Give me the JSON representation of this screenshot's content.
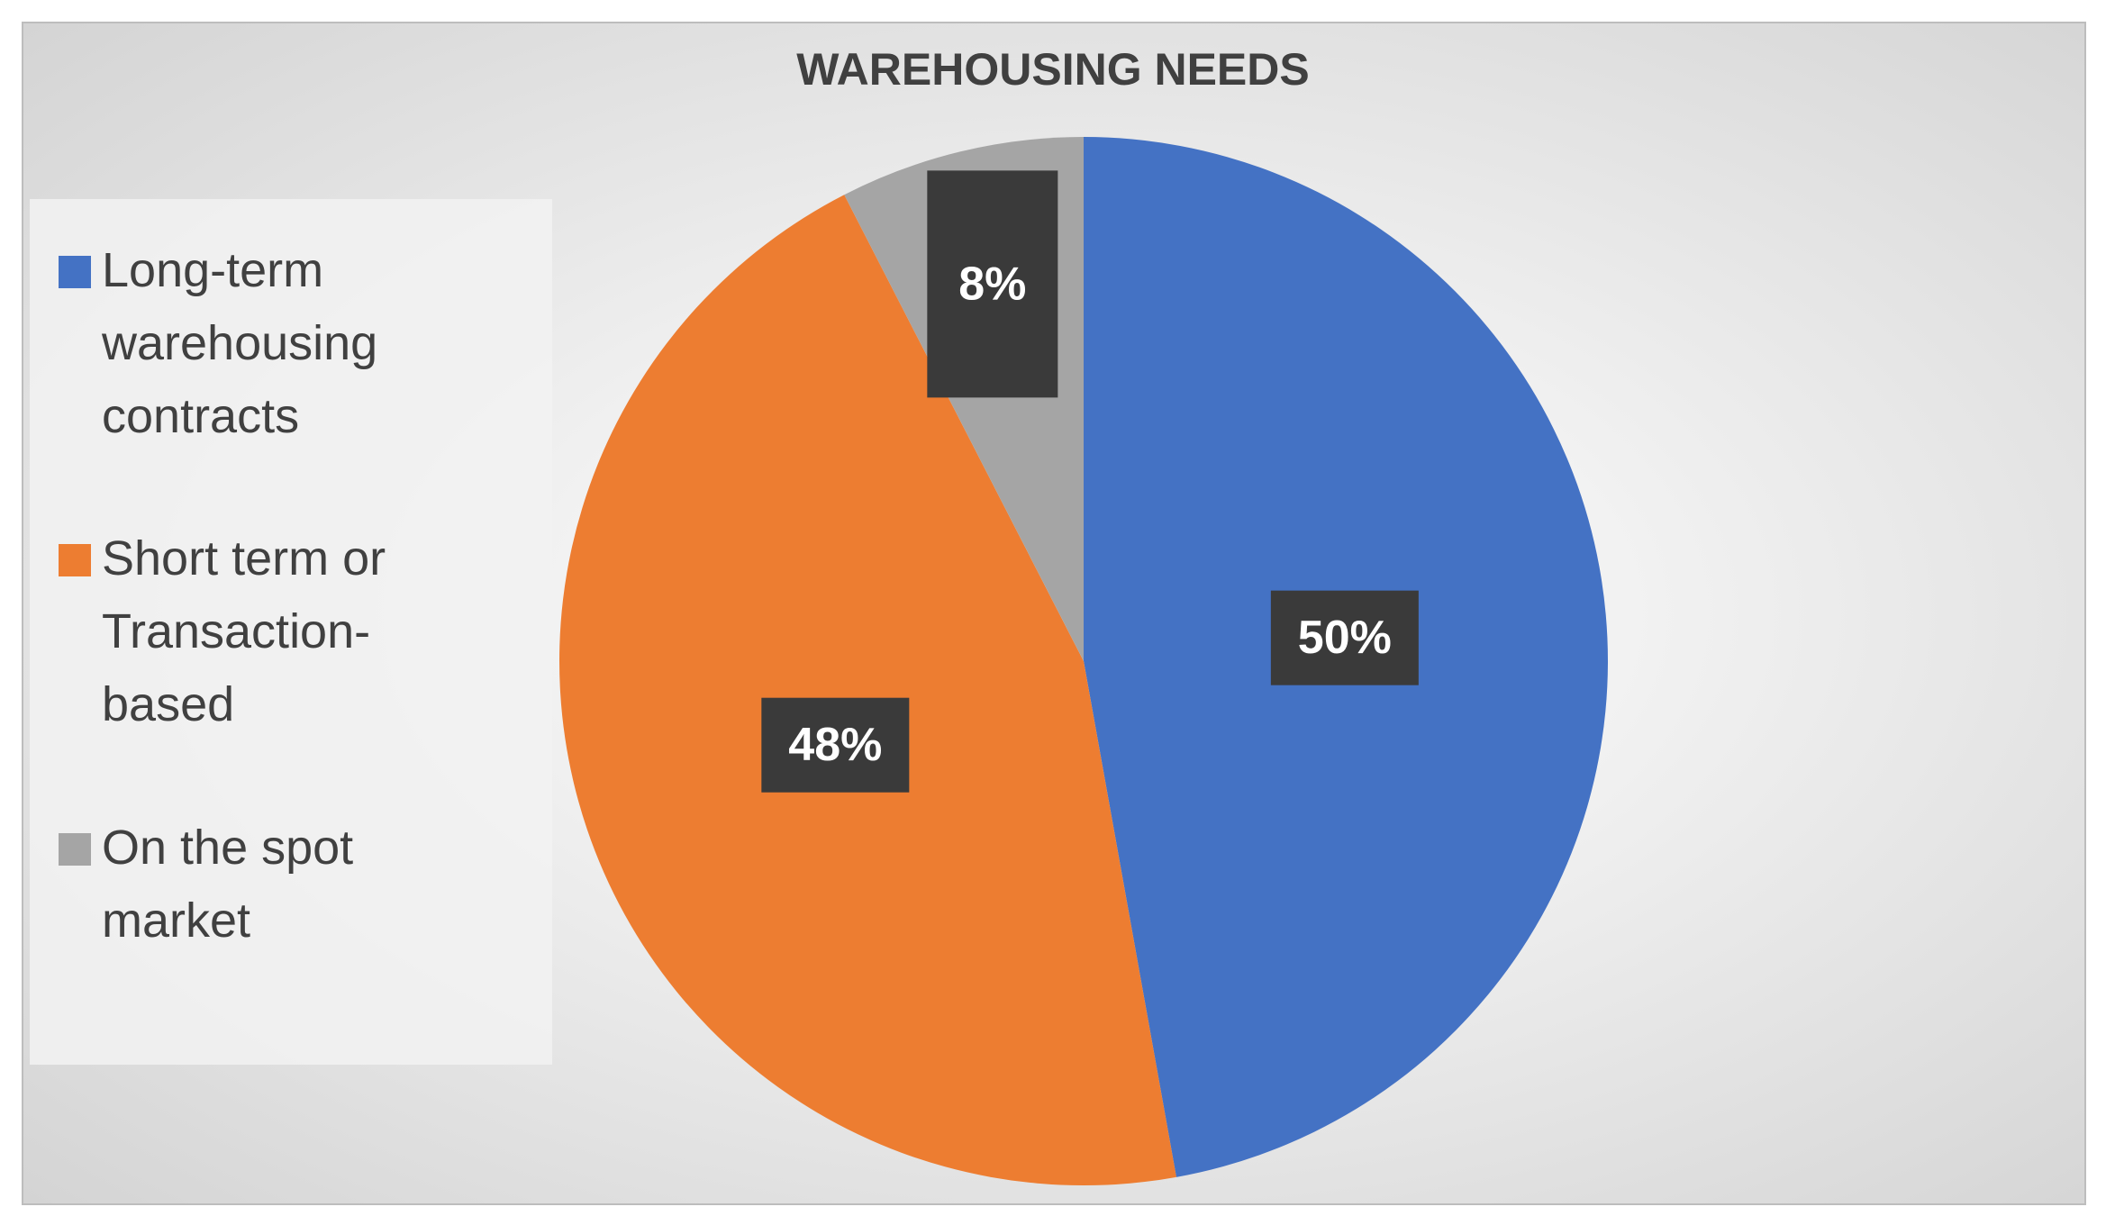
{
  "chart_data": {
    "type": "pie",
    "title": "WAREHOUSING NEEDS",
    "categories": [
      "Long-term warehousing contracts",
      "Short term or Transaction-based",
      "On the spot market"
    ],
    "values": [
      50,
      48,
      8
    ],
    "value_labels": [
      "50%",
      "48%",
      "8%"
    ],
    "colors": [
      "#4472c4",
      "#ed7d31",
      "#a5a5a5"
    ],
    "legend": "left"
  }
}
